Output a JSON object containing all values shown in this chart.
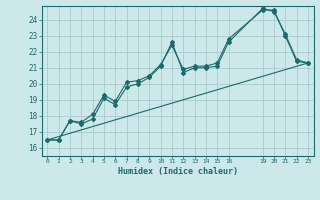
{
  "xlabel": "Humidex (Indice chaleur)",
  "bg_color": "#cce8e8",
  "grid_color": "#aacccc",
  "line_color": "#1a6b6b",
  "xlim": [
    -0.5,
    23.5
  ],
  "ylim": [
    15.5,
    24.85
  ],
  "yticks": [
    16,
    17,
    18,
    19,
    20,
    21,
    22,
    23,
    24
  ],
  "xticks": [
    0,
    1,
    2,
    3,
    4,
    5,
    6,
    7,
    8,
    9,
    10,
    11,
    12,
    13,
    14,
    15,
    16,
    19,
    20,
    21,
    22,
    23
  ],
  "line1_x": [
    0,
    1,
    2,
    3,
    4,
    5,
    6,
    7,
    8,
    9,
    10,
    11,
    12,
    13,
    14,
    15,
    16,
    19,
    20,
    21,
    22,
    23
  ],
  "line1_y": [
    16.5,
    16.5,
    17.7,
    17.5,
    17.8,
    19.1,
    18.7,
    19.8,
    20.0,
    20.4,
    21.1,
    22.6,
    20.7,
    21.0,
    21.0,
    21.1,
    22.6,
    24.7,
    24.5,
    23.1,
    21.5,
    21.3
  ],
  "line2_x": [
    0,
    1,
    2,
    3,
    4,
    5,
    6,
    7,
    8,
    9,
    10,
    11,
    12,
    13,
    14,
    15,
    16,
    19,
    20,
    21,
    22,
    23
  ],
  "line2_y": [
    16.5,
    16.5,
    17.7,
    17.6,
    18.1,
    19.3,
    18.9,
    20.1,
    20.2,
    20.5,
    21.2,
    22.4,
    20.9,
    21.1,
    21.1,
    21.3,
    22.8,
    24.6,
    24.6,
    23.0,
    21.4,
    21.3
  ],
  "line3_x": [
    0,
    23
  ],
  "line3_y": [
    16.5,
    21.3
  ]
}
